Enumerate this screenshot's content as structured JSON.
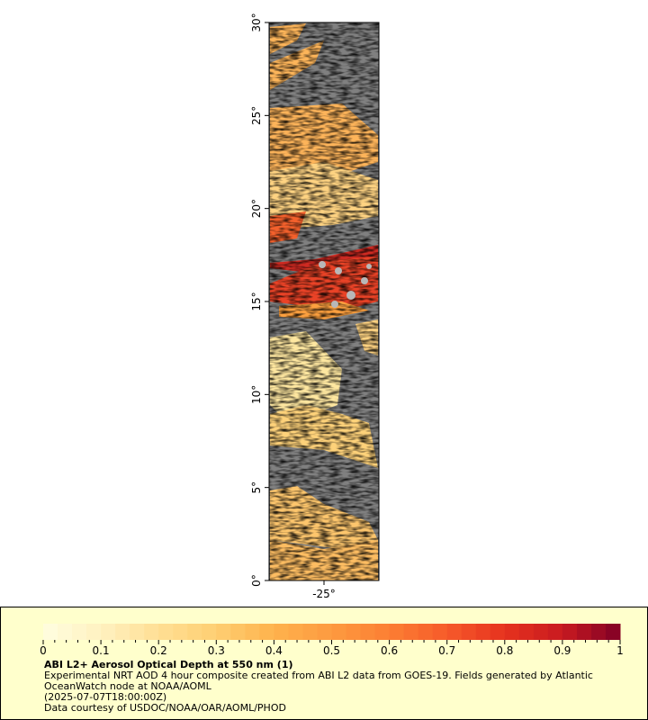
{
  "map": {
    "lat_min": 0,
    "lat_max": 30,
    "lat_tick_labels": [
      "0°",
      "5°",
      "10°",
      "15°",
      "20°",
      "25°",
      "30°"
    ],
    "lat_tick_values": [
      0,
      5,
      10,
      15,
      20,
      25,
      30
    ],
    "lon_tick_labels": [
      "-25°"
    ],
    "land_color": "#808080"
  },
  "colorbar": {
    "min": 0,
    "max": 1,
    "tick_labels": [
      "0",
      "0.1",
      "0.2",
      "0.3",
      "0.4",
      "0.5",
      "0.6",
      "0.7",
      "0.8",
      "0.9",
      "1"
    ],
    "colors": [
      "#fffde0",
      "#fff1c0",
      "#ffdf94",
      "#fecf73",
      "#feb24c",
      "#fd9a40",
      "#fc7e33",
      "#f65a2a",
      "#e6321e",
      "#c81a20",
      "#800026"
    ]
  },
  "caption": {
    "title": "ABI L2+ Aerosol Optical Depth at 550 nm (1)",
    "line1": "Experimental NRT AOD 4 hour composite created from ABI L2 data from GOES-19. Fields generated by Atlantic OceanWatch node at NOAA/AOML",
    "line2": "(2025-07-07T18:00:00Z)",
    "line3": "Data courtesy of USDOC/NOAA/OAR/AOML/PHOD"
  }
}
